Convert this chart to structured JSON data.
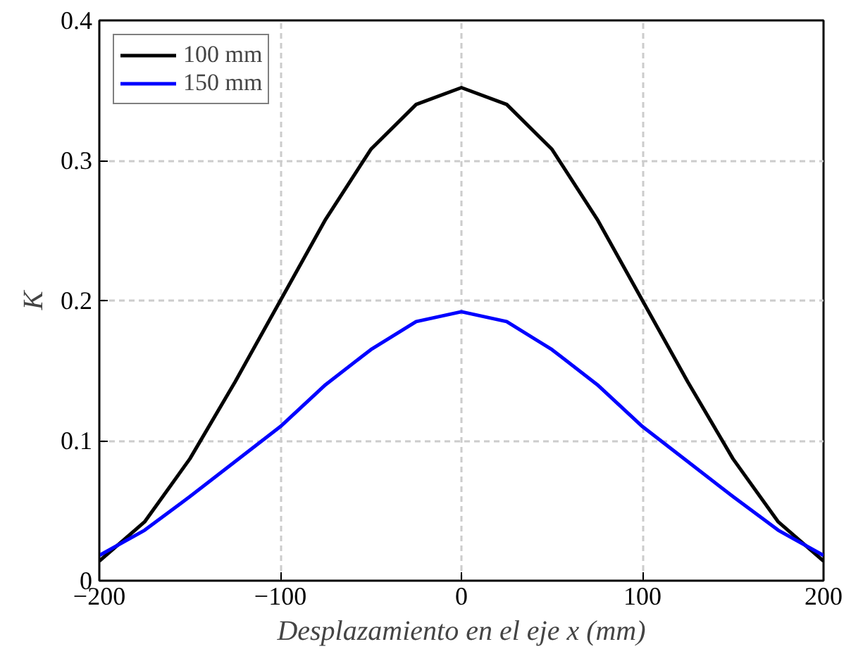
{
  "chart_data": {
    "type": "line",
    "xlabel": "Desplazamiento en el eje x (mm)",
    "ylabel": "K",
    "xlim": [
      -200,
      200
    ],
    "ylim": [
      0,
      0.4
    ],
    "xticks": [
      -200,
      -100,
      0,
      100,
      200
    ],
    "yticks": [
      0,
      0.1,
      0.2,
      0.3,
      0.4
    ],
    "grid": true,
    "legend": "top left",
    "line_style": "solid",
    "x": [
      -200,
      -175,
      -150,
      -125,
      -100,
      -75,
      -50,
      -25,
      0,
      25,
      50,
      75,
      100,
      125,
      150,
      175,
      200
    ],
    "series": [
      {
        "name": "100 mm",
        "color": "#000000",
        "values": [
          0.014,
          0.042,
          0.087,
          0.142,
          0.2,
          0.258,
          0.308,
          0.34,
          0.352,
          0.34,
          0.308,
          0.258,
          0.2,
          0.142,
          0.087,
          0.042,
          0.014
        ]
      },
      {
        "name": "150 mm",
        "color": "#0000ff",
        "values": [
          0.018,
          0.036,
          0.06,
          0.085,
          0.11,
          0.14,
          0.165,
          0.185,
          0.192,
          0.185,
          0.165,
          0.14,
          0.11,
          0.085,
          0.06,
          0.036,
          0.018
        ]
      }
    ]
  }
}
